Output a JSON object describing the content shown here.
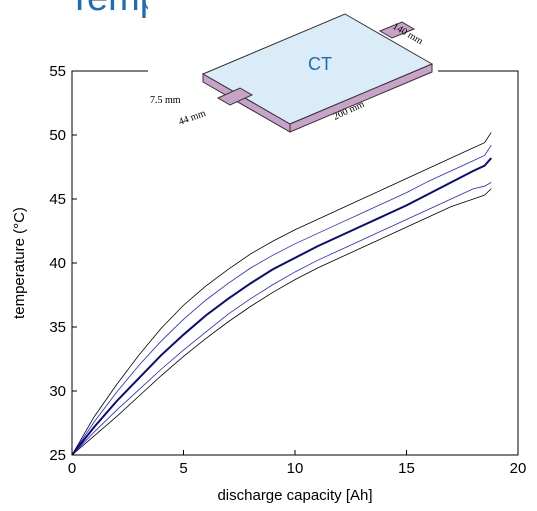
{
  "chart_data": {
    "type": "line",
    "title": "Temperature",
    "xlabel": "discharge capacity [Ah]",
    "ylabel": "temperature (°C)",
    "annotations": [
      "CT",
      "140 mm",
      "7.5 mm",
      "44 mm",
      "200 mm"
    ],
    "x": [
      0,
      1,
      2,
      3,
      4,
      5,
      6,
      7,
      8,
      9,
      10,
      11,
      12,
      13,
      14,
      15,
      16,
      17,
      18,
      18.5,
      18.8
    ],
    "series": [
      {
        "color": "#000000",
        "line_width": 0.8,
        "values": [
          25,
          28.0,
          30.5,
          32.8,
          34.9,
          36.7,
          38.2,
          39.5,
          40.7,
          41.7,
          42.6,
          43.4,
          44.2,
          45.0,
          45.8,
          46.6,
          47.4,
          48.2,
          49.0,
          49.4,
          50.2
        ]
      },
      {
        "color": "#2222ee",
        "line_width": 0.8,
        "values": [
          25,
          27.6,
          29.9,
          32.0,
          33.9,
          35.6,
          37.1,
          38.4,
          39.6,
          40.6,
          41.5,
          42.3,
          43.1,
          43.9,
          44.7,
          45.5,
          46.4,
          47.2,
          48.0,
          48.4,
          49.2
        ]
      },
      {
        "color": "#0a0a80",
        "line_width": 2,
        "values": [
          25,
          27.2,
          29.2,
          31.0,
          32.8,
          34.4,
          35.9,
          37.2,
          38.4,
          39.5,
          40.4,
          41.3,
          42.1,
          42.9,
          43.7,
          44.5,
          45.4,
          46.3,
          47.2,
          47.6,
          48.2
        ]
      },
      {
        "color": "#2222ee",
        "line_width": 0.8,
        "values": [
          25,
          26.8,
          28.5,
          30.1,
          31.7,
          33.2,
          34.6,
          36.0,
          37.2,
          38.3,
          39.3,
          40.2,
          41.0,
          41.8,
          42.6,
          43.4,
          44.2,
          45.0,
          45.8,
          46.0,
          46.3
        ]
      },
      {
        "color": "#000000",
        "line_width": 0.8,
        "values": [
          25,
          26.5,
          28.0,
          29.6,
          31.2,
          32.7,
          34.1,
          35.4,
          36.6,
          37.7,
          38.7,
          39.6,
          40.4,
          41.2,
          42.0,
          42.8,
          43.6,
          44.4,
          45.0,
          45.3,
          45.8
        ]
      }
    ],
    "xlim": [
      0,
      20
    ],
    "ylim": [
      25,
      55
    ],
    "xticks": [
      0,
      5,
      10,
      15,
      20
    ],
    "yticks": [
      25,
      30,
      35,
      40,
      45,
      50,
      55
    ]
  }
}
